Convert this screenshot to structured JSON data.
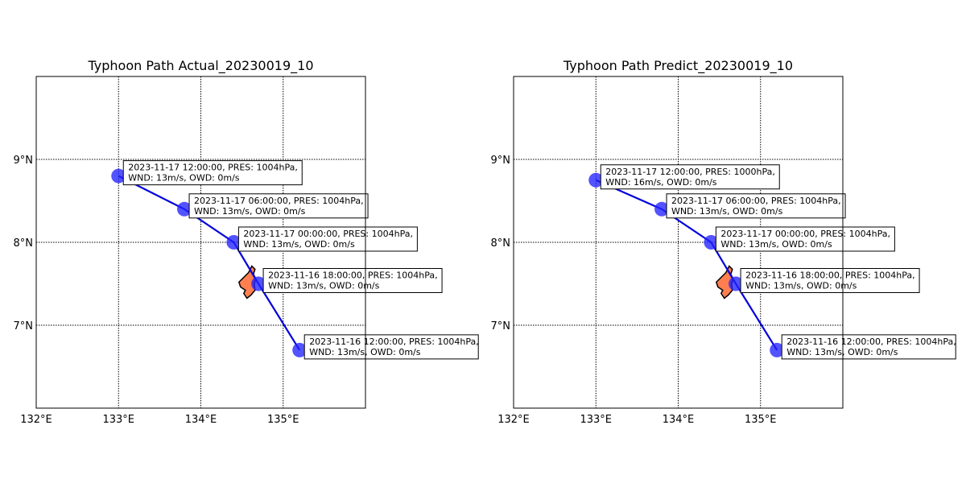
{
  "chart_data": [
    {
      "type": "line",
      "title": "Typhoon Path Actual_20230019_10",
      "xlim": [
        132,
        136
      ],
      "ylim": [
        6,
        10
      ],
      "xticks": [
        132,
        133,
        134,
        135
      ],
      "xtick_labels": [
        "132°E",
        "133°E",
        "134°E",
        "135°E"
      ],
      "yticks": [
        7,
        8,
        9
      ],
      "ytick_labels": [
        "7°N",
        "8°N",
        "9°N"
      ],
      "grid": true,
      "line_color": "#0000dd",
      "marker_color": "#2222ff",
      "land_color": "#ff7f50",
      "points": [
        {
          "lon": 135.2,
          "lat": 6.7,
          "time": "2023-11-16 12:00:00",
          "label1": "2023-11-16 12:00:00, PRES: 1004hPa,",
          "label2": "WND: 13m/s, OWD: 0m/s"
        },
        {
          "lon": 134.7,
          "lat": 7.5,
          "time": "2023-11-16 18:00:00",
          "label1": "2023-11-16 18:00:00, PRES: 1004hPa,",
          "label2": "WND: 13m/s, OWD: 0m/s"
        },
        {
          "lon": 134.4,
          "lat": 8.0,
          "time": "2023-11-17 00:00:00",
          "label1": "2023-11-17 00:00:00, PRES: 1004hPa,",
          "label2": "WND: 13m/s, OWD: 0m/s"
        },
        {
          "lon": 133.8,
          "lat": 8.4,
          "time": "2023-11-17 06:00:00",
          "label1": "2023-11-17 06:00:00, PRES: 1004hPa,",
          "label2": "WND: 13m/s, OWD: 0m/s"
        },
        {
          "lon": 133.0,
          "lat": 8.8,
          "time": "2023-11-17 12:00:00",
          "label1": "2023-11-17 12:00:00, PRES: 1004hPa,",
          "label2": "WND: 13m/s, OWD: 0m/s"
        }
      ]
    },
    {
      "type": "line",
      "title": "Typhoon Path Predict_20230019_10",
      "xlim": [
        132,
        136
      ],
      "ylim": [
        6,
        10
      ],
      "xticks": [
        132,
        133,
        134,
        135
      ],
      "xtick_labels": [
        "132°E",
        "133°E",
        "134°E",
        "135°E"
      ],
      "yticks": [
        7,
        8,
        9
      ],
      "ytick_labels": [
        "7°N",
        "8°N",
        "9°N"
      ],
      "grid": true,
      "line_color": "#0000dd",
      "marker_color": "#2222ff",
      "land_color": "#ff7f50",
      "points": [
        {
          "lon": 135.2,
          "lat": 6.7,
          "time": "2023-11-16 12:00:00",
          "label1": "2023-11-16 12:00:00, PRES: 1004hPa,",
          "label2": "WND: 13m/s, OWD: 0m/s"
        },
        {
          "lon": 134.7,
          "lat": 7.5,
          "time": "2023-11-16 18:00:00",
          "label1": "2023-11-16 18:00:00, PRES: 1004hPa,",
          "label2": "WND: 13m/s, OWD: 0m/s"
        },
        {
          "lon": 134.4,
          "lat": 8.0,
          "time": "2023-11-17 00:00:00",
          "label1": "2023-11-17 00:00:00, PRES: 1004hPa,",
          "label2": "WND: 13m/s, OWD: 0m/s"
        },
        {
          "lon": 133.8,
          "lat": 8.4,
          "time": "2023-11-17 06:00:00",
          "label1": "2023-11-17 06:00:00, PRES: 1004hPa,",
          "label2": "WND: 13m/s, OWD: 0m/s"
        },
        {
          "lon": 133.0,
          "lat": 8.75,
          "time": "2023-11-17 12:00:00",
          "label1": "2023-11-17 12:00:00, PRES: 1000hPa,",
          "label2": "WND: 16m/s, OWD: 0m/s"
        }
      ]
    }
  ]
}
